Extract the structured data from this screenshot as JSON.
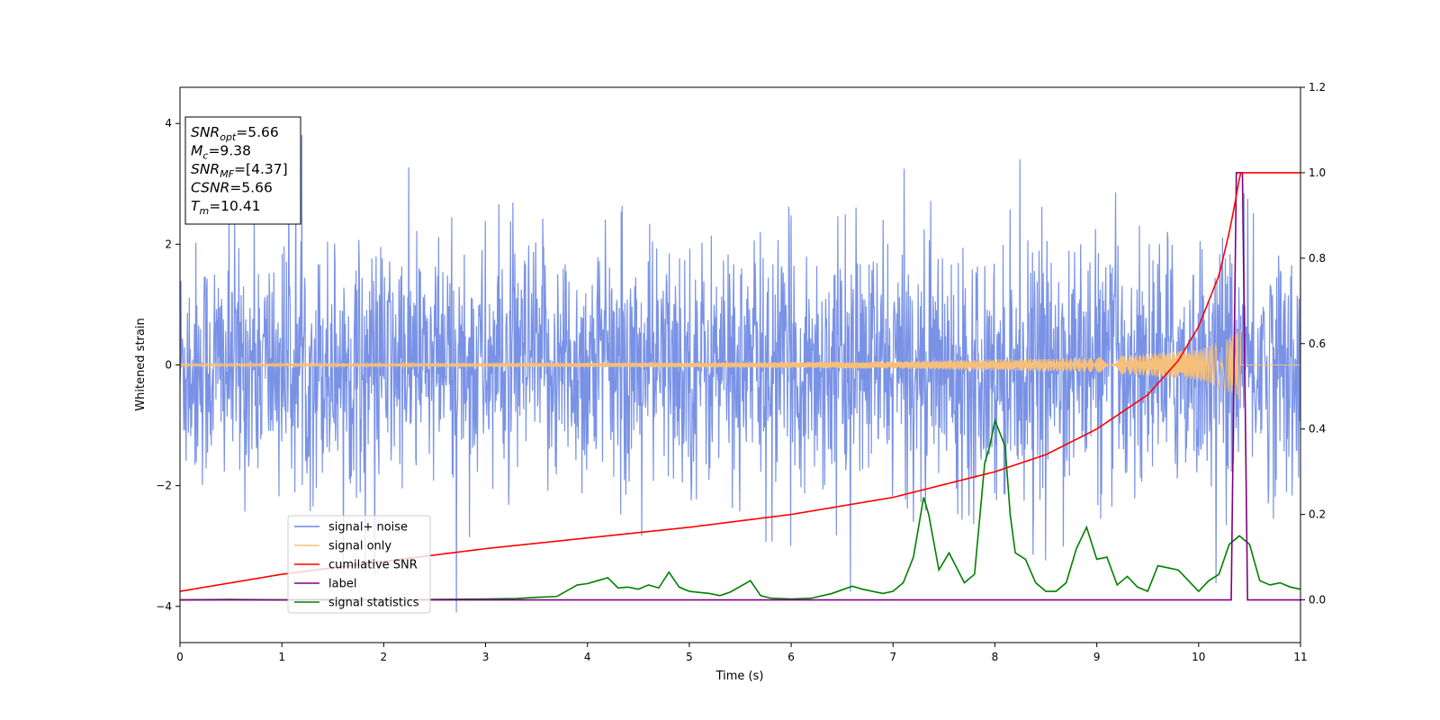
{
  "chart_data": {
    "type": "line",
    "xlabel": "Time (s)",
    "ylabel": "Whitened strain",
    "xlim": [
      0,
      11
    ],
    "ylim_left": [
      -4.6,
      4.6
    ],
    "ylim_right": [
      -0.1,
      1.2
    ],
    "x_ticks": [
      0,
      1,
      2,
      3,
      4,
      5,
      6,
      7,
      8,
      9,
      10,
      11
    ],
    "y_left_ticks": [
      -4,
      -2,
      0,
      2,
      4
    ],
    "y_left_tick_labels": [
      "−4",
      "−2",
      "0",
      "2",
      "4"
    ],
    "y_right_ticks": [
      0.0,
      0.2,
      0.4,
      0.6,
      0.8,
      1.0,
      1.2
    ],
    "y_right_tick_labels": [
      "0.0",
      "0.2",
      "0.4",
      "0.6",
      "0.8",
      "1.0",
      "1.2"
    ],
    "grid": false,
    "legend_position": "lower-left",
    "legend": [
      {
        "label": "signal+ noise",
        "color": "#6a86e3"
      },
      {
        "label": "signal only",
        "color": "#f6c07a"
      },
      {
        "label": "cumilative SNR",
        "color": "#ff0000"
      },
      {
        "label": "label",
        "color": "#800080"
      },
      {
        "label": "signal statistics",
        "color": "#008000"
      }
    ],
    "annotation": [
      {
        "base": "SNR",
        "sub": "opt",
        "value": "=5.66"
      },
      {
        "base": "M",
        "sub": "c",
        "value": "=9.38"
      },
      {
        "base": "SNR",
        "sub": "MF",
        "value": "=[4.37]"
      },
      {
        "base": "CSNR",
        "sub": "",
        "value": "=5.66"
      },
      {
        "base": "T",
        "sub": "m",
        "value": "=10.41"
      }
    ],
    "series": [
      {
        "name": "signal+ noise",
        "axis": "left",
        "color": "#6a86e3",
        "description_range": [
          -4.1,
          4.2
        ],
        "noise_std": 1.0
      },
      {
        "name": "signal only",
        "axis": "left",
        "color": "#f6c07a",
        "amplitude_envelope": {
          "x": [
            0,
            5,
            7,
            9,
            10,
            10.3,
            10.41
          ],
          "y": [
            0.02,
            0.04,
            0.06,
            0.12,
            0.25,
            0.45,
            0.6
          ]
        }
      },
      {
        "name": "cumilative SNR",
        "axis": "right",
        "color": "#ff0000",
        "x": [
          0,
          1,
          2,
          3,
          4,
          5,
          6,
          7,
          7.5,
          8,
          8.5,
          9,
          9.5,
          9.8,
          10,
          10.2,
          10.3,
          10.35,
          10.41,
          10.5,
          11
        ],
        "y": [
          0.02,
          0.06,
          0.09,
          0.12,
          0.145,
          0.17,
          0.2,
          0.24,
          0.27,
          0.3,
          0.34,
          0.4,
          0.48,
          0.56,
          0.64,
          0.76,
          0.86,
          0.92,
          1.0,
          1.0,
          1.0
        ]
      },
      {
        "name": "label",
        "axis": "right",
        "color": "#800080",
        "x": [
          0,
          10.32,
          10.37,
          10.43,
          10.48,
          11
        ],
        "y": [
          0,
          0,
          1.0,
          1.0,
          0,
          0
        ]
      },
      {
        "name": "signal statistics",
        "axis": "right",
        "color": "#008000",
        "x": [
          0,
          0.5,
          1,
          1.5,
          2,
          2.5,
          3,
          3.3,
          3.5,
          3.7,
          3.9,
          4.0,
          4.1,
          4.2,
          4.3,
          4.4,
          4.5,
          4.6,
          4.7,
          4.8,
          4.9,
          5.0,
          5.2,
          5.3,
          5.4,
          5.6,
          5.7,
          5.8,
          6.0,
          6.2,
          6.4,
          6.6,
          6.7,
          6.9,
          7.0,
          7.1,
          7.2,
          7.3,
          7.35,
          7.45,
          7.55,
          7.7,
          7.8,
          7.9,
          7.95,
          8.0,
          8.1,
          8.15,
          8.2,
          8.3,
          8.4,
          8.5,
          8.6,
          8.7,
          8.8,
          8.9,
          9.0,
          9.1,
          9.2,
          9.3,
          9.4,
          9.5,
          9.6,
          9.7,
          9.8,
          9.9,
          10.0,
          10.1,
          10.2,
          10.3,
          10.4,
          10.5,
          10.6,
          10.7,
          10.8,
          10.9,
          11.0
        ],
        "y": [
          0,
          0.001,
          0,
          0.001,
          0,
          0.001,
          0.002,
          0.003,
          0.006,
          0.008,
          0.035,
          0.038,
          0.045,
          0.052,
          0.028,
          0.03,
          0.025,
          0.035,
          0.028,
          0.065,
          0.03,
          0.02,
          0.015,
          0.01,
          0.018,
          0.045,
          0.01,
          0.004,
          0.002,
          0.004,
          0.015,
          0.032,
          0.025,
          0.015,
          0.02,
          0.04,
          0.1,
          0.24,
          0.2,
          0.07,
          0.11,
          0.04,
          0.06,
          0.32,
          0.36,
          0.42,
          0.36,
          0.2,
          0.11,
          0.095,
          0.04,
          0.02,
          0.02,
          0.04,
          0.12,
          0.17,
          0.095,
          0.1,
          0.035,
          0.055,
          0.03,
          0.02,
          0.08,
          0.075,
          0.07,
          0.045,
          0.02,
          0.045,
          0.06,
          0.13,
          0.15,
          0.13,
          0.045,
          0.035,
          0.04,
          0.03,
          0.025
        ]
      }
    ]
  }
}
